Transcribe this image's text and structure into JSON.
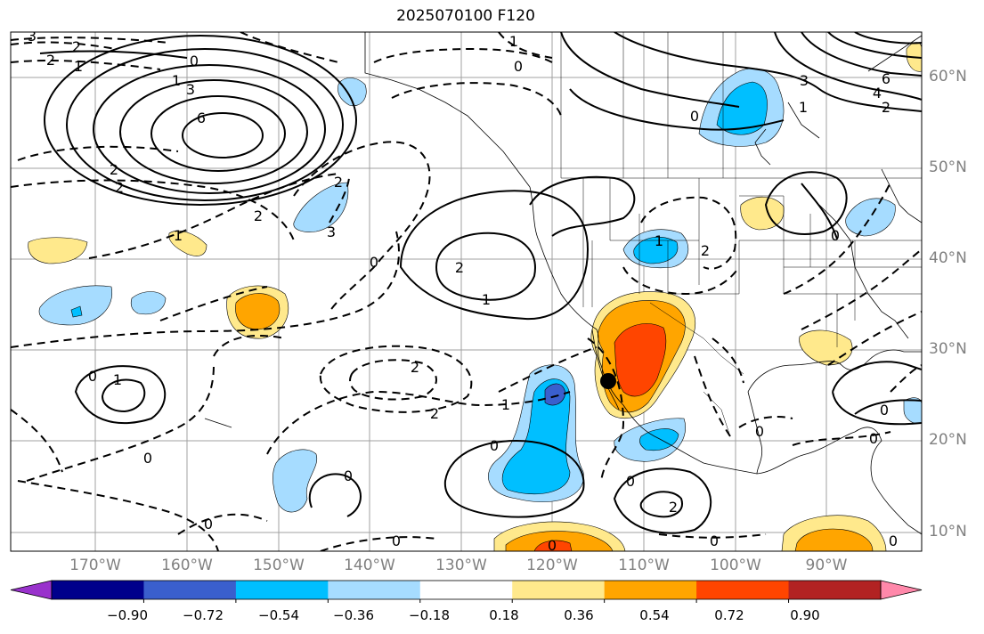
{
  "title": "2025070100 F120",
  "lon_ticks": [
    "170°W",
    "160°W",
    "150°W",
    "140°W",
    "130°W",
    "120°W",
    "110°W",
    "100°W",
    "90°W"
  ],
  "lat_ticks": [
    "60°N",
    "50°N",
    "40°N",
    "30°N",
    "20°N",
    "10°N"
  ],
  "colorbar": {
    "labels": [
      "−0.90",
      "−0.72",
      "−0.54",
      "−0.36",
      "−0.18",
      "0.18",
      "0.36",
      "0.54",
      "0.72",
      "0.90"
    ],
    "colors": [
      "#9932cc",
      "#00008b",
      "#3a5fcd",
      "#00bfff",
      "#a6dcff",
      "#ffffff",
      "#ffe98c",
      "#ffa500",
      "#ff4500",
      "#b22222",
      "#ff88aa"
    ]
  },
  "contour_labels": [
    "3",
    "2",
    "2",
    "1",
    "0",
    "1",
    "3",
    "6",
    "2",
    "2",
    "2",
    "3",
    "1",
    "0",
    "2",
    "6",
    "4",
    "2",
    "3",
    "0",
    "1",
    "2",
    "1",
    "2",
    "0",
    "1",
    "2",
    "2",
    "1",
    "0",
    "0",
    "1",
    "0",
    "0",
    "0",
    "0",
    "0",
    "0",
    "0",
    "0",
    "0",
    "0",
    "1",
    "2",
    "0",
    "0"
  ],
  "marker": "black-dot"
}
